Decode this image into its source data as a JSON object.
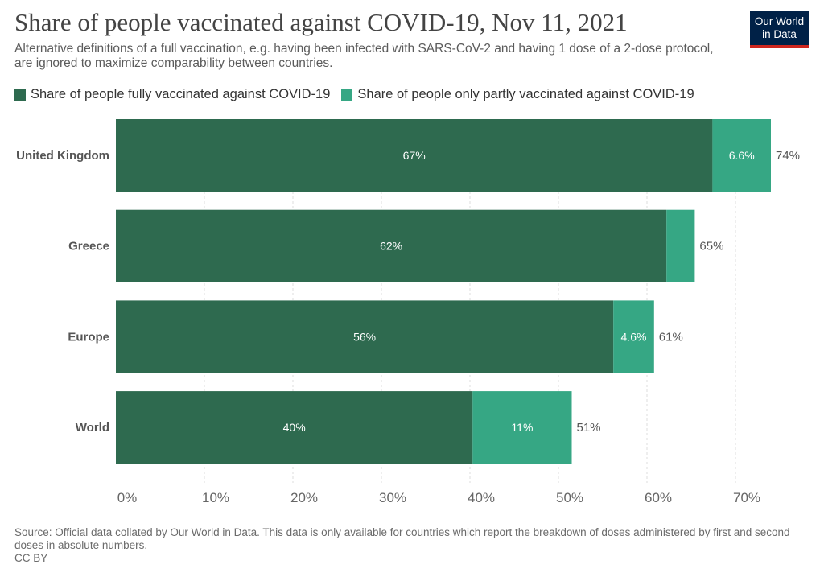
{
  "header": {
    "title": "Share of people vaccinated against COVID-19, Nov 11, 2021",
    "subtitle": "Alternative definitions of a full vaccination, e.g. having been infected with SARS-CoV-2 and having 1 dose of a 2-dose protocol, are ignored to maximize comparability between countries."
  },
  "logo": {
    "line1": "Our World",
    "line2": "in Data"
  },
  "legend": {
    "fully": "Share of people fully vaccinated against COVID-19",
    "partly": "Share of people only partly vaccinated against COVID-19"
  },
  "colors": {
    "fully": "#2e6a4f",
    "partly": "#36a784",
    "grid": "#dddddd",
    "logo_bg": "#002147",
    "logo_bar": "#ce261e"
  },
  "chart_data": {
    "type": "bar",
    "orientation": "horizontal",
    "stacked": true,
    "title": "Share of people vaccinated against COVID-19, Nov 11, 2021",
    "categories": [
      "United Kingdom",
      "Greece",
      "Europe",
      "World"
    ],
    "series": [
      {
        "name": "Share of people fully vaccinated against COVID-19",
        "values": [
          67.4,
          62.2,
          56.2,
          40.3
        ],
        "labels": [
          "67%",
          "62%",
          "56%",
          "40%"
        ]
      },
      {
        "name": "Share of people only partly vaccinated against COVID-19",
        "values": [
          6.6,
          3.2,
          4.6,
          11.2
        ],
        "labels": [
          "6.6%",
          "",
          "4.6%",
          "11%"
        ]
      }
    ],
    "totals": [
      "74%",
      "65%",
      "61%",
      "51%"
    ],
    "xlim": [
      0,
      76
    ],
    "xticks": [
      0,
      10,
      20,
      30,
      40,
      50,
      60,
      70
    ],
    "xtick_labels": [
      "0%",
      "10%",
      "20%",
      "30%",
      "40%",
      "50%",
      "60%",
      "70%"
    ],
    "grid": true,
    "legend_position": "top"
  },
  "footer": {
    "source": "Source: Official data collated by Our World in Data. This data is only available for countries which report the breakdown of doses administered by first and second doses in absolute numbers.",
    "license": "CC BY"
  }
}
